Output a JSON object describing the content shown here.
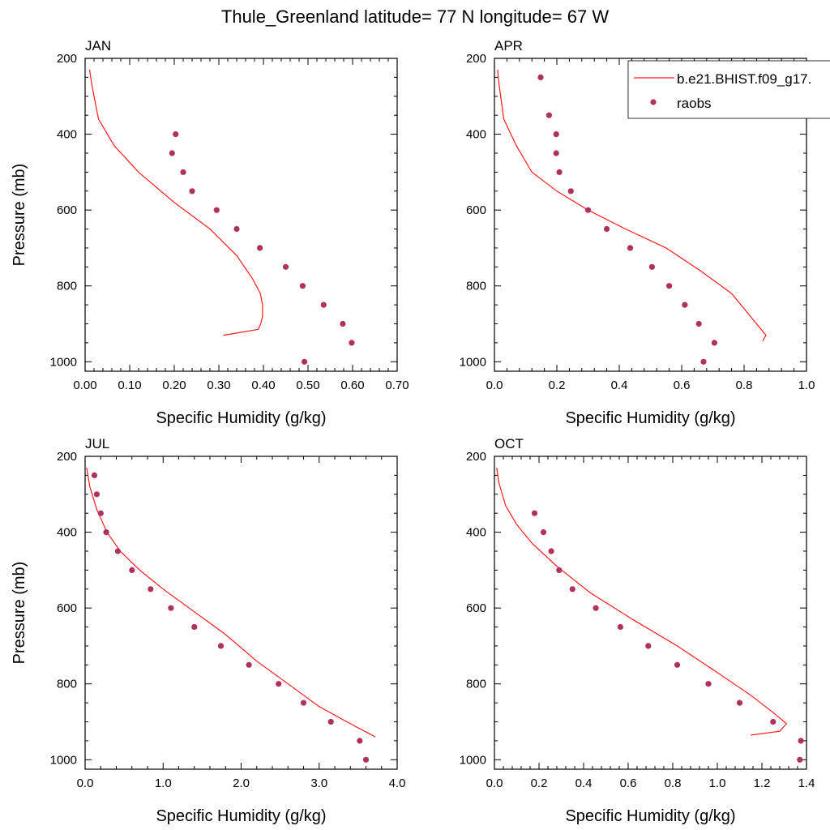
{
  "title": "Thule_Greenland  latitude= 77 N longitude= 67 W",
  "colors": {
    "model": "#ff1a1a",
    "obs": "#b03060",
    "axis": "#000000"
  },
  "legend": {
    "model_label": "b.e21.BHIST.f09_g17.",
    "obs_label": "raobs",
    "placement": "top-right (APR panel)"
  },
  "chart_data": [
    {
      "type": "line",
      "panel": "JAN",
      "title": "JAN",
      "xlabel": "Specific Humidity (g/kg)",
      "ylabel": "Pressure (mb)",
      "xlim": [
        0,
        0.7
      ],
      "ylim": [
        200,
        1025
      ],
      "y_inverted": true,
      "xticks": [
        0,
        0.1,
        0.2,
        0.3,
        0.4,
        0.5,
        0.6,
        0.7
      ],
      "xtick_labels": [
        "0.00",
        "0.10",
        "0.20",
        "0.30",
        "0.40",
        "0.50",
        "0.60",
        "0.70"
      ],
      "yticks": [
        200,
        400,
        600,
        800,
        1000
      ],
      "ytick_labels": [
        "200",
        "400",
        "600",
        "800",
        "1000"
      ],
      "series": [
        {
          "name": "b.e21.BHIST.f09_g17.",
          "kind": "line",
          "x": [
            0.01,
            0.015,
            0.03,
            0.065,
            0.12,
            0.2,
            0.28,
            0.34,
            0.375,
            0.393,
            0.398,
            0.398,
            0.394,
            0.388,
            0.31
          ],
          "y": [
            230,
            270,
            360,
            430,
            500,
            580,
            650,
            720,
            780,
            820,
            850,
            880,
            900,
            915,
            930
          ]
        },
        {
          "name": "raobs",
          "kind": "scatter",
          "x": [
            0.203,
            0.195,
            0.22,
            0.24,
            0.295,
            0.34,
            0.392,
            0.45,
            0.488,
            0.535,
            0.578,
            0.598,
            0.492
          ],
          "y": [
            400,
            450,
            500,
            550,
            600,
            650,
            700,
            750,
            800,
            850,
            900,
            950,
            1000
          ]
        }
      ]
    },
    {
      "type": "line",
      "panel": "APR",
      "title": "APR",
      "xlabel": "Specific Humidity (g/kg)",
      "ylabel": "",
      "xlim": [
        0,
        1.0
      ],
      "ylim": [
        200,
        1025
      ],
      "y_inverted": true,
      "xticks": [
        0,
        0.2,
        0.4,
        0.6,
        0.8,
        1.0
      ],
      "xtick_labels": [
        "0.0",
        "0.2",
        "0.4",
        "0.6",
        "0.8",
        "1.0"
      ],
      "yticks": [
        200,
        400,
        600,
        800,
        1000
      ],
      "ytick_labels": [
        "200",
        "400",
        "600",
        "800",
        "1000"
      ],
      "series": [
        {
          "name": "b.e21.BHIST.f09_g17.",
          "kind": "line",
          "x": [
            0.01,
            0.015,
            0.03,
            0.07,
            0.12,
            0.2,
            0.3,
            0.42,
            0.55,
            0.66,
            0.76,
            0.81,
            0.85,
            0.87,
            0.86
          ],
          "y": [
            230,
            270,
            360,
            430,
            500,
            550,
            600,
            650,
            700,
            760,
            820,
            870,
            910,
            930,
            945
          ]
        },
        {
          "name": "raobs",
          "kind": "scatter",
          "x": [
            0.148,
            0.175,
            0.198,
            0.198,
            0.208,
            0.245,
            0.3,
            0.36,
            0.435,
            0.505,
            0.56,
            0.61,
            0.655,
            0.705,
            0.67
          ],
          "y": [
            250,
            350,
            400,
            450,
            500,
            550,
            600,
            650,
            700,
            750,
            800,
            850,
            900,
            950,
            1000
          ]
        }
      ]
    },
    {
      "type": "line",
      "panel": "JUL",
      "title": "JUL",
      "xlabel": "Specific Humidity (g/kg)",
      "ylabel": "Pressure (mb)",
      "xlim": [
        0,
        4.0
      ],
      "ylim": [
        200,
        1025
      ],
      "y_inverted": true,
      "xticks": [
        0,
        1,
        2,
        3,
        4
      ],
      "xtick_labels": [
        "0.0",
        "1.0",
        "2.0",
        "3.0",
        "4.0"
      ],
      "yticks": [
        200,
        400,
        600,
        800,
        1000
      ],
      "ytick_labels": [
        "200",
        "400",
        "600",
        "800",
        "1000"
      ],
      "series": [
        {
          "name": "b.e21.BHIST.f09_g17.",
          "kind": "line",
          "x": [
            0.02,
            0.06,
            0.15,
            0.28,
            0.45,
            0.7,
            1.0,
            1.4,
            1.8,
            2.2,
            2.6,
            3.0,
            3.4,
            3.72
          ],
          "y": [
            230,
            280,
            340,
            400,
            450,
            500,
            550,
            610,
            670,
            740,
            800,
            860,
            905,
            940
          ]
        },
        {
          "name": "raobs",
          "kind": "scatter",
          "x": [
            0.12,
            0.15,
            0.2,
            0.27,
            0.42,
            0.6,
            0.84,
            1.1,
            1.4,
            1.74,
            2.1,
            2.48,
            2.8,
            3.15,
            3.52,
            3.6
          ],
          "y": [
            250,
            300,
            350,
            400,
            450,
            500,
            550,
            600,
            650,
            700,
            750,
            800,
            850,
            900,
            950,
            1000
          ]
        }
      ]
    },
    {
      "type": "line",
      "panel": "OCT",
      "title": "OCT",
      "xlabel": "Specific Humidity (g/kg)",
      "ylabel": "",
      "xlim": [
        0,
        1.4
      ],
      "ylim": [
        200,
        1025
      ],
      "y_inverted": true,
      "xticks": [
        0,
        0.2,
        0.4,
        0.6,
        0.8,
        1.0,
        1.2,
        1.4
      ],
      "xtick_labels": [
        "0.0",
        "0.2",
        "0.4",
        "0.6",
        "0.8",
        "1.0",
        "1.2",
        "1.4"
      ],
      "yticks": [
        200,
        400,
        600,
        800,
        1000
      ],
      "ytick_labels": [
        "200",
        "400",
        "600",
        "800",
        "1000"
      ],
      "series": [
        {
          "name": "b.e21.BHIST.f09_g17.",
          "kind": "line",
          "x": [
            0.01,
            0.02,
            0.05,
            0.1,
            0.17,
            0.28,
            0.43,
            0.62,
            0.82,
            1.0,
            1.15,
            1.26,
            1.31,
            1.28,
            1.15
          ],
          "y": [
            230,
            270,
            330,
            380,
            430,
            490,
            560,
            630,
            700,
            770,
            830,
            880,
            905,
            925,
            935
          ]
        },
        {
          "name": "raobs",
          "kind": "scatter",
          "x": [
            0.18,
            0.22,
            0.255,
            0.29,
            0.35,
            0.455,
            0.565,
            0.69,
            0.82,
            0.96,
            1.1,
            1.25,
            1.375,
            1.37
          ],
          "y": [
            350,
            400,
            450,
            500,
            550,
            600,
            650,
            700,
            750,
            800,
            850,
            900,
            950,
            1000
          ]
        }
      ]
    }
  ]
}
